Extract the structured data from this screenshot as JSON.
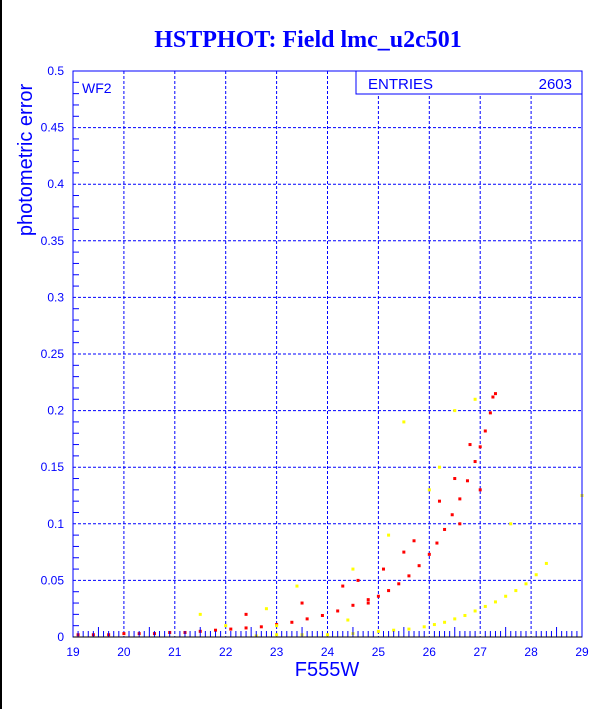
{
  "chart_data": {
    "type": "scatter",
    "title": "HSTPHOT: Field lmc_u2c501",
    "xlabel": "F555W",
    "ylabel": "photometric error",
    "xlim": [
      19,
      29
    ],
    "ylim": [
      0,
      0.5
    ],
    "xticks": [
      "19",
      "20",
      "21",
      "22",
      "23",
      "24",
      "25",
      "26",
      "27",
      "28",
      "29"
    ],
    "yticks": [
      "0",
      "0.05",
      "0.1",
      "0.15",
      "0.2",
      "0.25",
      "0.3",
      "0.35",
      "0.4",
      "0.45",
      "0.5"
    ],
    "grid": true,
    "annotation": "WF2",
    "stats": {
      "label": "ENTRIES",
      "value": "2603"
    },
    "series": [
      {
        "name": "red",
        "color": "#ff0000",
        "points": [
          [
            19.1,
            0.002
          ],
          [
            19.4,
            0.002
          ],
          [
            19.7,
            0.002
          ],
          [
            20,
            0.003
          ],
          [
            20.3,
            0.003
          ],
          [
            20.6,
            0.003
          ],
          [
            20.9,
            0.004
          ],
          [
            21.2,
            0.004
          ],
          [
            21.5,
            0.005
          ],
          [
            21.8,
            0.006
          ],
          [
            22.1,
            0.007
          ],
          [
            22.4,
            0.008
          ],
          [
            22.7,
            0.009
          ],
          [
            23,
            0.011
          ],
          [
            23.3,
            0.013
          ],
          [
            23.6,
            0.016
          ],
          [
            23.9,
            0.019
          ],
          [
            24.2,
            0.023
          ],
          [
            24.5,
            0.028
          ],
          [
            24.8,
            0.033
          ],
          [
            25,
            0.036
          ],
          [
            25.2,
            0.041
          ],
          [
            25.4,
            0.047
          ],
          [
            25.6,
            0.054
          ],
          [
            25.8,
            0.063
          ],
          [
            26,
            0.073
          ],
          [
            26.15,
            0.083
          ],
          [
            26.3,
            0.095
          ],
          [
            26.45,
            0.108
          ],
          [
            26.6,
            0.122
          ],
          [
            26.75,
            0.138
          ],
          [
            26.9,
            0.155
          ],
          [
            27,
            0.168
          ],
          [
            27.1,
            0.182
          ],
          [
            27.2,
            0.198
          ],
          [
            27.25,
            0.212
          ],
          [
            27.3,
            0.215
          ],
          [
            22.4,
            0.02
          ],
          [
            23.5,
            0.03
          ],
          [
            24.3,
            0.045
          ],
          [
            24.6,
            0.05
          ],
          [
            25.1,
            0.06
          ],
          [
            25.5,
            0.075
          ],
          [
            25.7,
            0.085
          ],
          [
            26.2,
            0.12
          ],
          [
            26.5,
            0.14
          ],
          [
            26.8,
            0.17
          ],
          [
            24.8,
            0.03
          ],
          [
            26.6,
            0.1
          ],
          [
            27,
            0.13
          ]
        ]
      },
      {
        "name": "yellow",
        "color": "#ffff00",
        "points": [
          [
            22.6,
            0.001
          ],
          [
            23,
            0.002
          ],
          [
            23.5,
            0.002
          ],
          [
            24,
            0.002
          ],
          [
            24.5,
            0.003
          ],
          [
            25,
            0.005
          ],
          [
            25.3,
            0.006
          ],
          [
            25.6,
            0.007
          ],
          [
            25.9,
            0.009
          ],
          [
            26.1,
            0.011
          ],
          [
            26.3,
            0.013
          ],
          [
            26.5,
            0.016
          ],
          [
            26.7,
            0.019
          ],
          [
            26.9,
            0.023
          ],
          [
            27.1,
            0.027
          ],
          [
            27.3,
            0.031
          ],
          [
            27.5,
            0.036
          ],
          [
            27.7,
            0.041
          ],
          [
            27.9,
            0.047
          ],
          [
            28.1,
            0.055
          ],
          [
            28.3,
            0.065
          ],
          [
            29,
            0.125
          ],
          [
            22.8,
            0.025
          ],
          [
            23.4,
            0.045
          ],
          [
            24.5,
            0.06
          ],
          [
            25.2,
            0.09
          ],
          [
            26,
            0.13
          ],
          [
            26.5,
            0.2
          ],
          [
            26.9,
            0.21
          ],
          [
            23,
            0.01
          ],
          [
            24.4,
            0.015
          ],
          [
            25.5,
            0.19
          ],
          [
            22,
            0.01
          ],
          [
            21.5,
            0.02
          ],
          [
            27.6,
            0.1
          ],
          [
            26.2,
            0.15
          ]
        ]
      }
    ]
  }
}
